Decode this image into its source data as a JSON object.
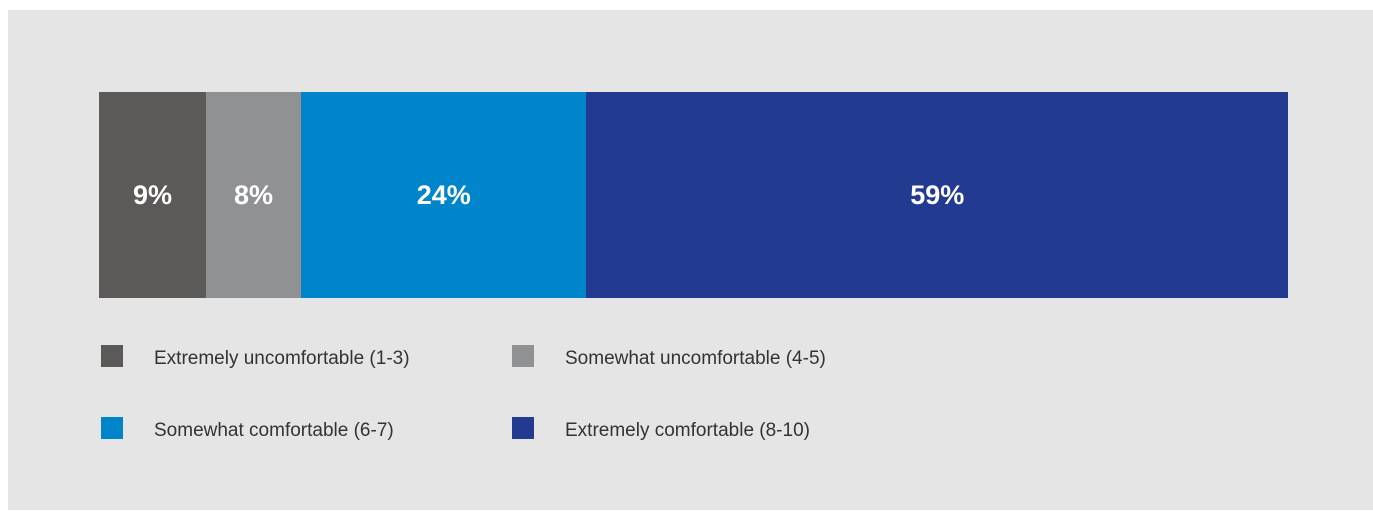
{
  "chart_data": {
    "type": "bar",
    "subtype": "100%-stacked-horizontal",
    "series": [
      {
        "name": "Extremely uncomfortable (1-3)",
        "value": 9,
        "label": "9%",
        "color": "#5b5a58"
      },
      {
        "name": "Somewhat uncomfortable (4-5)",
        "value": 8,
        "label": "8%",
        "color": "#8f9193"
      },
      {
        "name": "Somewhat comfortable (6-7)",
        "value": 24,
        "label": "24%",
        "color": "#0085ca"
      },
      {
        "name": "Extremely comfortable (8-10)",
        "value": 59,
        "label": "59%",
        "color": "#223a8f"
      }
    ],
    "unit": "%",
    "total": 100,
    "legend": {
      "position": "bottom",
      "columns": 2
    },
    "grid": false,
    "background": "#e5e5e5"
  }
}
